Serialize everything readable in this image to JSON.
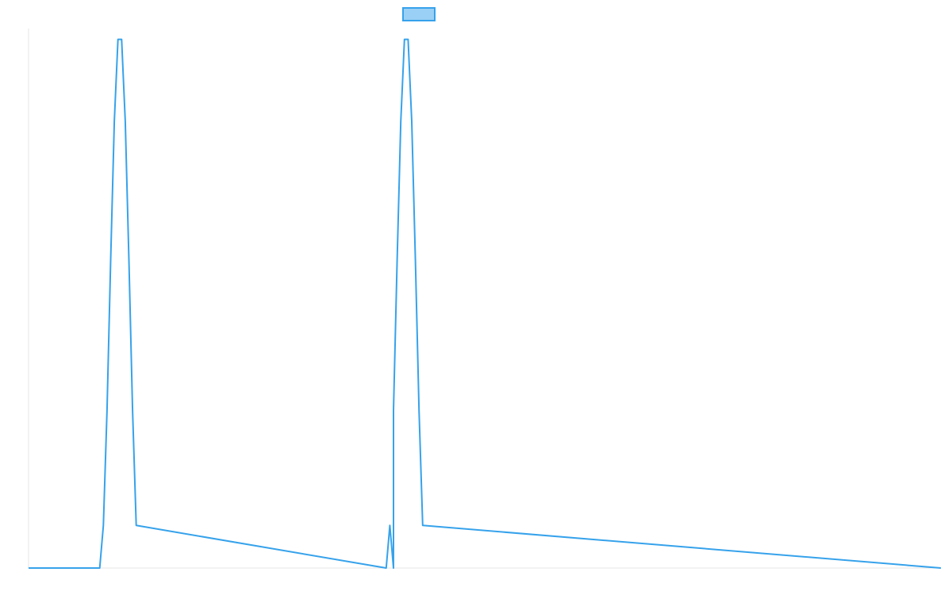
{
  "chart_data": {
    "type": "line",
    "title": "",
    "xlabel": "",
    "ylabel": "",
    "legend": {
      "position": "top-center",
      "entries": [
        {
          "name": "",
          "color": "#36a2eb",
          "fill": "#9ad0f5"
        }
      ]
    },
    "grid": false,
    "xlim": [
      0,
      1000
    ],
    "ylim": [
      0,
      1
    ],
    "series": [
      {
        "name": "",
        "color": "#36a2eb",
        "x": [
          0,
          78,
          82,
          86,
          90,
          94,
          98,
          102,
          106,
          110,
          114,
          118,
          400,
          392,
          396,
          400,
          404,
          408,
          412,
          416,
          420,
          424,
          428,
          432,
          1000
        ],
        "y": [
          0,
          0,
          0.079,
          0.292,
          0.571,
          0.828,
          0.98,
          0.98,
          0.828,
          0.571,
          0.292,
          0.079,
          0,
          0,
          0.079,
          0.292,
          0.571,
          0.828,
          0.98,
          0.98,
          0.828,
          0.571,
          0.292,
          0.079,
          0
        ]
      }
    ]
  },
  "colors": {
    "line": "#36a2eb",
    "legend_fill": "#9ad0f5",
    "axis": "#e6e6e6",
    "background": "#ffffff"
  }
}
